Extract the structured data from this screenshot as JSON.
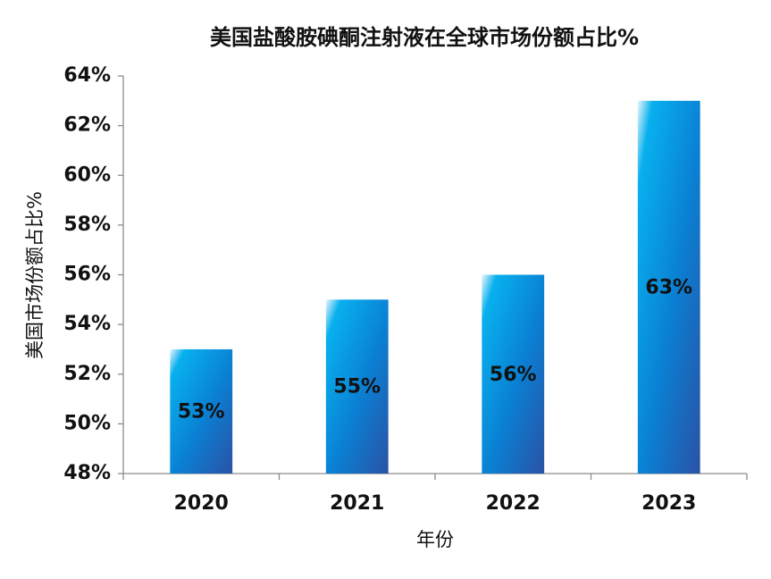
{
  "chart_data": {
    "type": "bar",
    "title": "美国盐酸胺碘酮注射液在全球市场份额占比%",
    "x_label": "年份",
    "y_label": "美国市场份额占比%",
    "categories": [
      "2020",
      "2021",
      "2022",
      "2023"
    ],
    "values": [
      53,
      55,
      56,
      63
    ],
    "value_labels": [
      "53%",
      "55%",
      "56%",
      "63%"
    ],
    "ylim": [
      48,
      64
    ],
    "yticks": [
      {
        "value": 48,
        "label": "48%"
      },
      {
        "value": 50,
        "label": "50%"
      },
      {
        "value": 52,
        "label": "52%"
      },
      {
        "value": 54,
        "label": "54%"
      },
      {
        "value": 56,
        "label": "56%"
      },
      {
        "value": 58,
        "label": "58%"
      },
      {
        "value": 60,
        "label": "60%"
      },
      {
        "value": 62,
        "label": "62%"
      },
      {
        "value": 64,
        "label": "64%"
      }
    ],
    "grid": false
  }
}
